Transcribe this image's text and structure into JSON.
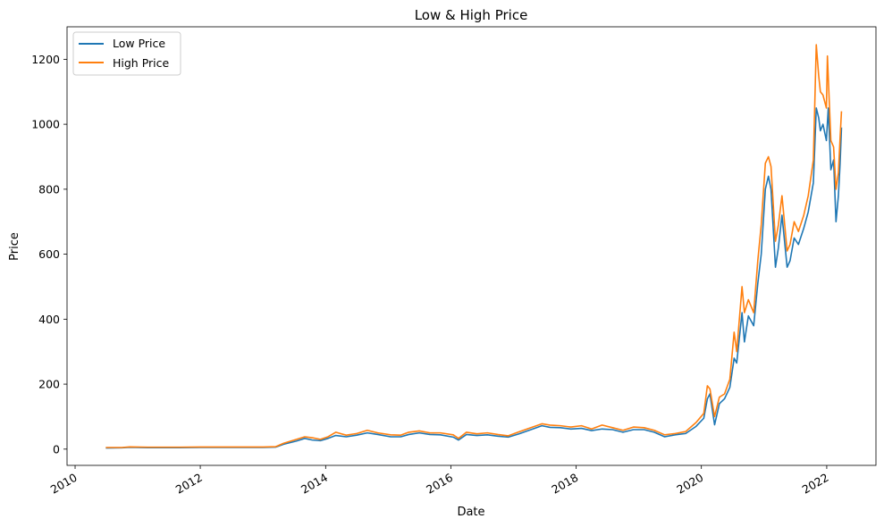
{
  "chart_data": {
    "type": "line",
    "title": "Low & High Price",
    "xlabel": "Date",
    "ylabel": "Price",
    "xlim": [
      "2009-11-15",
      "2022-10-15"
    ],
    "ylim": [
      -50,
      1300
    ],
    "x_ticks": [
      {
        "date": "2010-01-01",
        "label": "2010"
      },
      {
        "date": "2012-01-01",
        "label": "2012"
      },
      {
        "date": "2014-01-01",
        "label": "2014"
      },
      {
        "date": "2016-01-01",
        "label": "2016"
      },
      {
        "date": "2018-01-01",
        "label": "2018"
      },
      {
        "date": "2020-01-01",
        "label": "2020"
      },
      {
        "date": "2022-01-01",
        "label": "2022"
      }
    ],
    "y_ticks": [
      0,
      200,
      400,
      600,
      800,
      1000,
      1200
    ],
    "grid": false,
    "legend_position": "top-left",
    "series": [
      {
        "name": "Low Price",
        "color": "#1f77b4",
        "points": [
          [
            "2010-06-29",
            3.5
          ],
          [
            "2010-10-01",
            4
          ],
          [
            "2010-11-15",
            5.5
          ],
          [
            "2011-03-01",
            4.5
          ],
          [
            "2011-09-01",
            4.5
          ],
          [
            "2012-01-01",
            5
          ],
          [
            "2012-06-01",
            5
          ],
          [
            "2013-01-01",
            5
          ],
          [
            "2013-03-15",
            6
          ],
          [
            "2013-05-01",
            15
          ],
          [
            "2013-07-15",
            25
          ],
          [
            "2013-09-01",
            33
          ],
          [
            "2013-10-15",
            28
          ],
          [
            "2013-12-01",
            26
          ],
          [
            "2014-01-15",
            33
          ],
          [
            "2014-03-01",
            42
          ],
          [
            "2014-05-01",
            38
          ],
          [
            "2014-07-01",
            43
          ],
          [
            "2014-09-01",
            50
          ],
          [
            "2014-11-01",
            45
          ],
          [
            "2015-01-15",
            38
          ],
          [
            "2015-03-15",
            38
          ],
          [
            "2015-05-01",
            45
          ],
          [
            "2015-07-01",
            50
          ],
          [
            "2015-09-01",
            45
          ],
          [
            "2015-11-01",
            44
          ],
          [
            "2016-01-15",
            37
          ],
          [
            "2016-02-15",
            28
          ],
          [
            "2016-04-01",
            45
          ],
          [
            "2016-06-01",
            42
          ],
          [
            "2016-08-01",
            44
          ],
          [
            "2016-10-01",
            40
          ],
          [
            "2016-12-01",
            37
          ],
          [
            "2017-02-01",
            47
          ],
          [
            "2017-04-01",
            58
          ],
          [
            "2017-06-15",
            72
          ],
          [
            "2017-08-01",
            67
          ],
          [
            "2017-10-01",
            66
          ],
          [
            "2017-12-01",
            62
          ],
          [
            "2018-02-01",
            64
          ],
          [
            "2018-04-01",
            57
          ],
          [
            "2018-06-01",
            62
          ],
          [
            "2018-08-01",
            60
          ],
          [
            "2018-10-01",
            52
          ],
          [
            "2018-12-01",
            60
          ],
          [
            "2019-02-01",
            60
          ],
          [
            "2019-04-01",
            52
          ],
          [
            "2019-06-01",
            38
          ],
          [
            "2019-08-01",
            44
          ],
          [
            "2019-10-01",
            48
          ],
          [
            "2019-12-01",
            70
          ],
          [
            "2020-01-15",
            95
          ],
          [
            "2020-02-05",
            155
          ],
          [
            "2020-02-20",
            170
          ],
          [
            "2020-03-18",
            75
          ],
          [
            "2020-04-15",
            140
          ],
          [
            "2020-05-15",
            155
          ],
          [
            "2020-06-15",
            190
          ],
          [
            "2020-07-10",
            280
          ],
          [
            "2020-07-25",
            265
          ],
          [
            "2020-08-25",
            420
          ],
          [
            "2020-09-08",
            330
          ],
          [
            "2020-10-01",
            410
          ],
          [
            "2020-11-01",
            380
          ],
          [
            "2020-11-25",
            510
          ],
          [
            "2020-12-15",
            600
          ],
          [
            "2021-01-08",
            800
          ],
          [
            "2021-01-26",
            840
          ],
          [
            "2021-02-10",
            800
          ],
          [
            "2021-03-08",
            560
          ],
          [
            "2021-03-25",
            620
          ],
          [
            "2021-04-15",
            720
          ],
          [
            "2021-05-15",
            560
          ],
          [
            "2021-06-01",
            580
          ],
          [
            "2021-06-25",
            650
          ],
          [
            "2021-07-20",
            630
          ],
          [
            "2021-08-20",
            680
          ],
          [
            "2021-09-15",
            730
          ],
          [
            "2021-10-15",
            820
          ],
          [
            "2021-11-01",
            1050
          ],
          [
            "2021-11-15",
            1020
          ],
          [
            "2021-11-25",
            980
          ],
          [
            "2021-12-10",
            1000
          ],
          [
            "2021-12-30",
            950
          ],
          [
            "2022-01-10",
            1050
          ],
          [
            "2022-01-25",
            860
          ],
          [
            "2022-02-10",
            890
          ],
          [
            "2022-02-24",
            700
          ],
          [
            "2022-03-10",
            780
          ],
          [
            "2022-03-20",
            880
          ],
          [
            "2022-03-28",
            990
          ]
        ]
      },
      {
        "name": "High Price",
        "color": "#ff7f0e",
        "points": [
          [
            "2010-06-29",
            5
          ],
          [
            "2010-10-01",
            5
          ],
          [
            "2010-11-15",
            7
          ],
          [
            "2011-03-01",
            6
          ],
          [
            "2011-09-01",
            6
          ],
          [
            "2012-01-01",
            6.5
          ],
          [
            "2012-06-01",
            6.5
          ],
          [
            "2013-01-01",
            6.5
          ],
          [
            "2013-03-15",
            7.5
          ],
          [
            "2013-05-01",
            18
          ],
          [
            "2013-07-15",
            30
          ],
          [
            "2013-09-01",
            38
          ],
          [
            "2013-10-15",
            35
          ],
          [
            "2013-12-01",
            30
          ],
          [
            "2014-01-15",
            38
          ],
          [
            "2014-03-01",
            52
          ],
          [
            "2014-05-01",
            43
          ],
          [
            "2014-07-01",
            48
          ],
          [
            "2014-09-01",
            58
          ],
          [
            "2014-11-01",
            50
          ],
          [
            "2015-01-15",
            44
          ],
          [
            "2015-03-15",
            43
          ],
          [
            "2015-05-01",
            52
          ],
          [
            "2015-07-01",
            56
          ],
          [
            "2015-09-01",
            50
          ],
          [
            "2015-11-01",
            50
          ],
          [
            "2016-01-15",
            44
          ],
          [
            "2016-02-15",
            33
          ],
          [
            "2016-04-01",
            52
          ],
          [
            "2016-06-01",
            47
          ],
          [
            "2016-08-01",
            50
          ],
          [
            "2016-10-01",
            45
          ],
          [
            "2016-12-01",
            41
          ],
          [
            "2017-02-01",
            53
          ],
          [
            "2017-04-01",
            64
          ],
          [
            "2017-06-15",
            78
          ],
          [
            "2017-08-01",
            74
          ],
          [
            "2017-10-01",
            72
          ],
          [
            "2017-12-01",
            68
          ],
          [
            "2018-02-01",
            72
          ],
          [
            "2018-04-01",
            62
          ],
          [
            "2018-06-01",
            74
          ],
          [
            "2018-08-01",
            66
          ],
          [
            "2018-10-01",
            58
          ],
          [
            "2018-12-01",
            68
          ],
          [
            "2019-02-01",
            66
          ],
          [
            "2019-04-01",
            58
          ],
          [
            "2019-06-01",
            44
          ],
          [
            "2019-08-01",
            48
          ],
          [
            "2019-10-01",
            54
          ],
          [
            "2019-12-01",
            82
          ],
          [
            "2020-01-15",
            110
          ],
          [
            "2020-02-05",
            195
          ],
          [
            "2020-02-20",
            185
          ],
          [
            "2020-03-18",
            100
          ],
          [
            "2020-04-15",
            160
          ],
          [
            "2020-05-15",
            170
          ],
          [
            "2020-06-15",
            215
          ],
          [
            "2020-07-10",
            360
          ],
          [
            "2020-07-25",
            300
          ],
          [
            "2020-08-25",
            500
          ],
          [
            "2020-09-08",
            420
          ],
          [
            "2020-10-01",
            460
          ],
          [
            "2020-11-01",
            420
          ],
          [
            "2020-11-25",
            580
          ],
          [
            "2020-12-15",
            690
          ],
          [
            "2021-01-08",
            880
          ],
          [
            "2021-01-26",
            900
          ],
          [
            "2021-02-10",
            870
          ],
          [
            "2021-03-08",
            640
          ],
          [
            "2021-03-25",
            690
          ],
          [
            "2021-04-15",
            780
          ],
          [
            "2021-05-15",
            610
          ],
          [
            "2021-06-01",
            630
          ],
          [
            "2021-06-25",
            700
          ],
          [
            "2021-07-20",
            670
          ],
          [
            "2021-08-20",
            720
          ],
          [
            "2021-09-15",
            780
          ],
          [
            "2021-10-15",
            890
          ],
          [
            "2021-11-01",
            1245
          ],
          [
            "2021-11-15",
            1150
          ],
          [
            "2021-11-25",
            1100
          ],
          [
            "2021-12-10",
            1090
          ],
          [
            "2021-12-30",
            1050
          ],
          [
            "2022-01-05",
            1210
          ],
          [
            "2022-01-25",
            950
          ],
          [
            "2022-02-10",
            930
          ],
          [
            "2022-02-24",
            800
          ],
          [
            "2022-03-10",
            850
          ],
          [
            "2022-03-20",
            960
          ],
          [
            "2022-03-28",
            1040
          ]
        ]
      }
    ]
  }
}
